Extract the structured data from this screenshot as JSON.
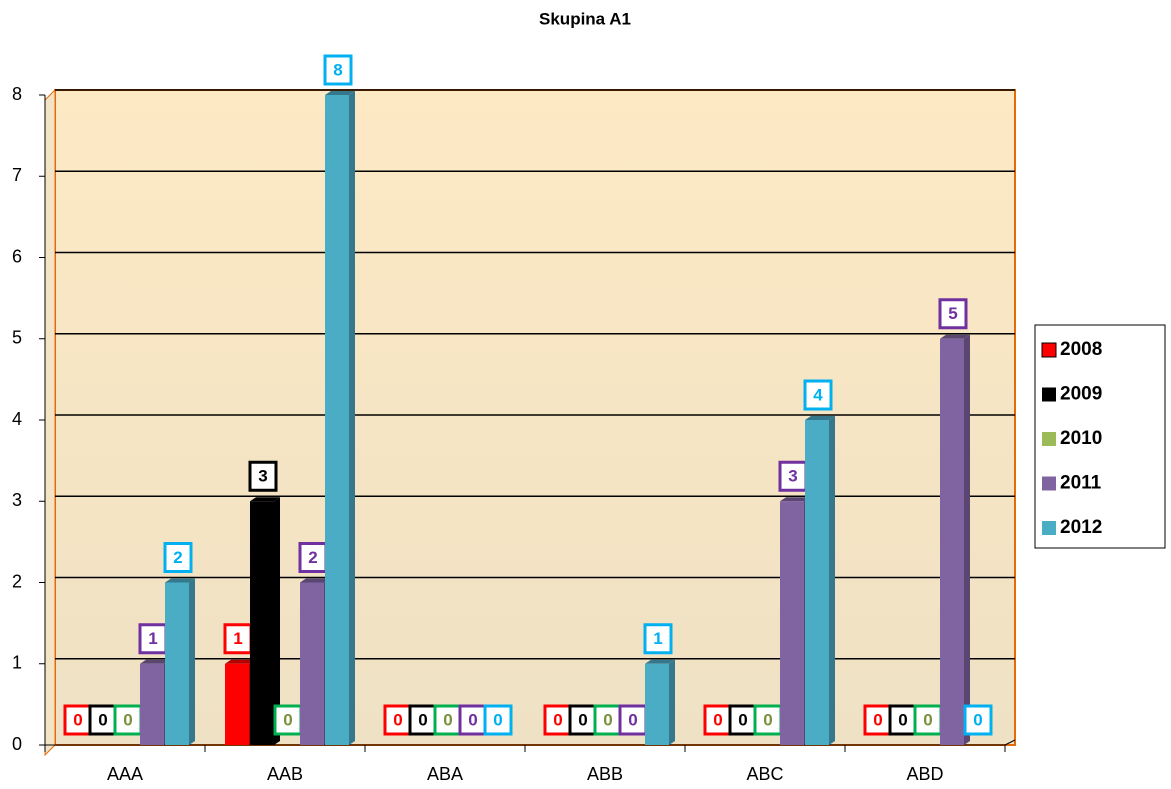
{
  "chart_data": {
    "type": "bar",
    "title": "Skupina A1",
    "categories": [
      "AAA",
      "AAB",
      "ABA",
      "ABB",
      "ABC",
      "ABD"
    ],
    "series": [
      {
        "name": "2008",
        "color": "#ff0000",
        "values": [
          0,
          1,
          0,
          0,
          0,
          0
        ]
      },
      {
        "name": "2009",
        "color": "#000000",
        "values": [
          0,
          3,
          0,
          0,
          0,
          0
        ]
      },
      {
        "name": "2010",
        "color": "#9bbb59",
        "values": [
          0,
          0,
          0,
          0,
          0,
          0
        ]
      },
      {
        "name": "2011",
        "color": "#8064a2",
        "values": [
          1,
          2,
          0,
          0,
          3,
          5
        ]
      },
      {
        "name": "2012",
        "color": "#4bacc6",
        "values": [
          2,
          8,
          0,
          1,
          4,
          0
        ]
      }
    ],
    "ylim": [
      0,
      8
    ],
    "yticks": [
      0,
      1,
      2,
      3,
      4,
      5,
      6,
      7,
      8
    ],
    "grid": true,
    "legend": "right"
  }
}
